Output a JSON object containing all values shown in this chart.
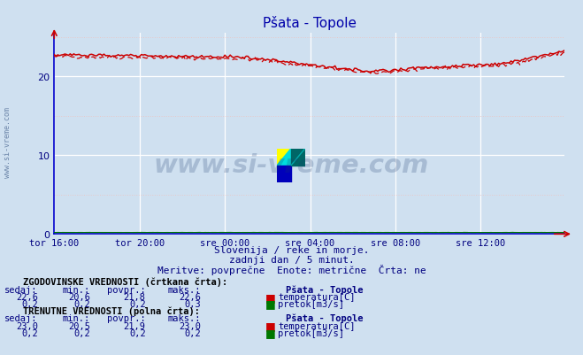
{
  "title": "Pšata - Topole",
  "fig_bg_color": "#cfe0f0",
  "plot_bg_color": "#cfe0f0",
  "grid_color_major": "#ffffff",
  "grid_color_minor": "#e8c8c8",
  "spine_color": "#0000cc",
  "x_tick_labels": [
    "tor 16:00",
    "tor 20:00",
    "sre 00:00",
    "sre 04:00",
    "sre 08:00",
    "sre 12:00"
  ],
  "x_tick_positions": [
    0,
    48,
    96,
    144,
    192,
    240
  ],
  "y_ticks": [
    0,
    10,
    20
  ],
  "ylim": [
    0,
    25.5
  ],
  "xlim": [
    0,
    287
  ],
  "temp_color": "#cc0000",
  "flow_color": "#007700",
  "subtitle1": "Slovenija / reke in morje.",
  "subtitle2": "zadnji dan / 5 minut.",
  "subtitle3": "Meritve: povprečne  Enote: metrične  Črta: ne",
  "legend_section1": "ZGODOVINSKE VREDNOSTI (črtkana črta):",
  "legend_section2": "TRENUTNE VREDNOSTI (polna črta):",
  "legend_headers": [
    "sedaj:",
    "min.:",
    "povpr.:",
    "maks.:",
    "Pšata - Topole"
  ],
  "hist_temp_vals": [
    "22,6",
    "20,6",
    "21,8",
    "22,6"
  ],
  "hist_flow_vals": [
    "0,2",
    "0,2",
    "0,2",
    "0,3"
  ],
  "curr_temp_vals": [
    "23,0",
    "20,5",
    "21,9",
    "23,0"
  ],
  "curr_flow_vals": [
    "0,2",
    "0,2",
    "0,2",
    "0,2"
  ],
  "temp_label": "temperatura[C]",
  "flow_label": "pretok[m3/s]",
  "watermark_text": "www.si-vreme.com",
  "watermark_color": "#1a3a6e",
  "side_text": "www.si-vreme.com",
  "n_points": 288
}
